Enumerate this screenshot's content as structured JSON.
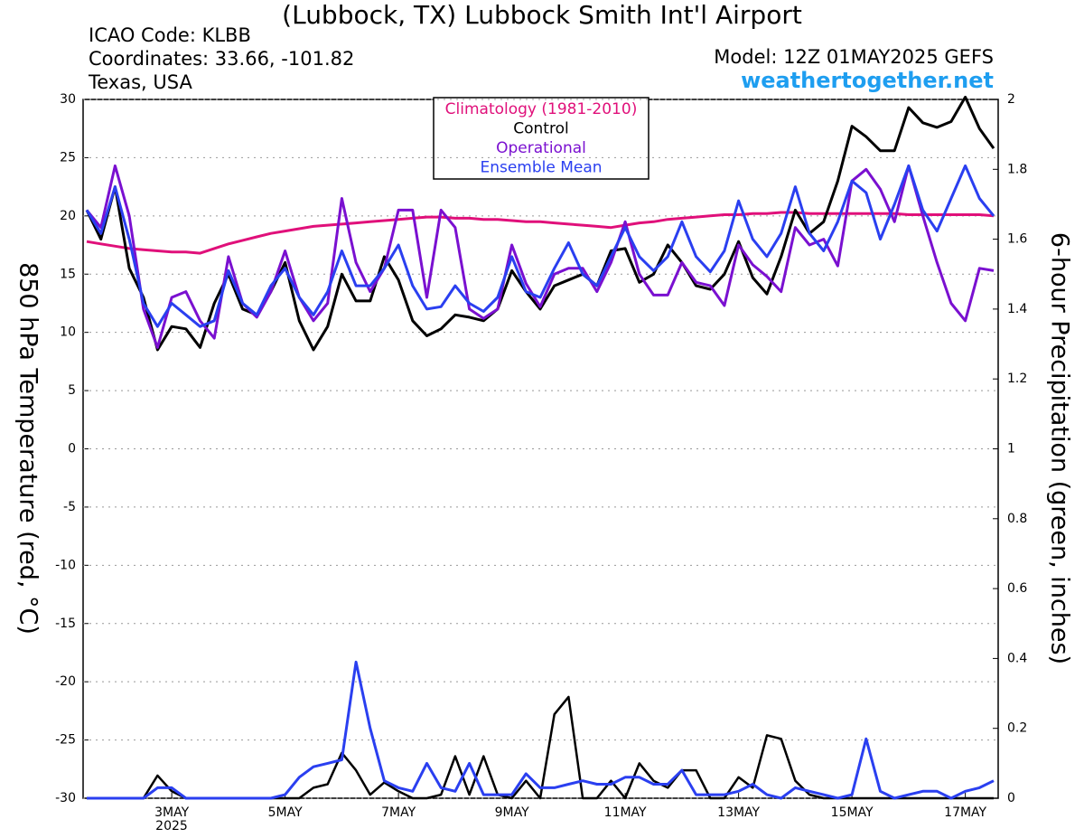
{
  "chart_data": {
    "type": "line",
    "title": "(Lubbock, TX) Lubbock Smith Int'l Airport",
    "info": [
      "ICAO Code: KLBB",
      "Coordinates: 33.66, -101.82",
      "Texas, USA"
    ],
    "model": "Model: 12Z 01MAY2025 GEFS",
    "website": "weathertogether.net",
    "year_label": "2025",
    "y_label": "850 hPa Temperature (red, °C)",
    "y2_label": "6-hour Precipitation (green, inches)",
    "grid": true,
    "legend_position": "top-center",
    "categories": [
      null,
      null,
      null,
      null,
      null,
      null,
      "3MAY",
      null,
      null,
      null,
      null,
      null,
      null,
      null,
      "5MAY",
      null,
      null,
      null,
      null,
      null,
      null,
      null,
      "7MAY",
      null,
      null,
      null,
      null,
      null,
      null,
      null,
      "9MAY",
      null,
      null,
      null,
      null,
      null,
      null,
      null,
      "11MAY",
      null,
      null,
      null,
      null,
      null,
      null,
      null,
      "13MAY",
      null,
      null,
      null,
      null,
      null,
      null,
      null,
      "15MAY",
      null,
      null,
      null,
      null,
      null,
      null,
      null,
      "17MAY",
      null,
      null
    ],
    "ylim": [
      -30,
      30
    ],
    "yticks": [
      30,
      25,
      20,
      15,
      10,
      5,
      0,
      -5,
      -10,
      -15,
      -20,
      -25,
      -30
    ],
    "y2lim": [
      0,
      2
    ],
    "y2ticks": [
      2,
      1.8,
      1.6,
      1.4,
      1.2,
      1,
      0.8,
      0.6,
      0.4,
      0.2,
      0
    ],
    "series": [
      {
        "name": "Climatology (1981-2010)",
        "color": "#e0107a",
        "width": 3,
        "values": [
          17.8,
          17.6,
          17.4,
          17.2,
          17.1,
          17.0,
          16.9,
          16.9,
          16.8,
          17.2,
          17.6,
          17.9,
          18.2,
          18.5,
          18.7,
          18.9,
          19.1,
          19.2,
          19.3,
          19.4,
          19.5,
          19.6,
          19.7,
          19.8,
          19.9,
          19.9,
          19.8,
          19.8,
          19.7,
          19.7,
          19.6,
          19.5,
          19.5,
          19.4,
          19.3,
          19.2,
          19.1,
          19.0,
          19.2,
          19.4,
          19.5,
          19.7,
          19.8,
          19.9,
          20.0,
          20.1,
          20.1,
          20.2,
          20.2,
          20.3,
          20.3,
          20.2,
          20.2,
          20.2,
          20.2,
          20.2,
          20.2,
          20.2,
          20.1,
          20.1,
          20.1,
          20.1,
          20.1,
          20.1,
          20.0
        ]
      },
      {
        "color": "#000000",
        "width": 2.5,
        "axis": "y2",
        "values": [
          0,
          0,
          0,
          0,
          0,
          0.065,
          0.02,
          0,
          0,
          0,
          0,
          0,
          0,
          0,
          0,
          0,
          0.03,
          0.04,
          0.13,
          0.08,
          0.01,
          0.045,
          0.02,
          0,
          0,
          0.01,
          0.12,
          0.01,
          0.12,
          0.01,
          0,
          0.05,
          0,
          0.24,
          0.29,
          0,
          0,
          0.05,
          0,
          0.1,
          0.05,
          0.03,
          0.08,
          0.08,
          0,
          0,
          0.06,
          0.03,
          0.18,
          0.17,
          0.05,
          0.01,
          0,
          0,
          0,
          0,
          0,
          0,
          0,
          0,
          0,
          0,
          0,
          0,
          0
        ]
      },
      {
        "color": "#2a3ff0",
        "width": 3,
        "axis": "y2",
        "values": [
          0,
          0,
          0,
          0,
          0,
          0.03,
          0.03,
          0,
          0,
          0,
          0,
          0,
          0,
          0,
          0.01,
          0.06,
          0.09,
          0.1,
          0.11,
          0.39,
          0.2,
          0.05,
          0.03,
          0.02,
          0.1,
          0.03,
          0.02,
          0.1,
          0.01,
          0.01,
          0.01,
          0.07,
          0.03,
          0.03,
          0.04,
          0.05,
          0.04,
          0.04,
          0.06,
          0.06,
          0.04,
          0.04,
          0.08,
          0.01,
          0.01,
          0.01,
          0.02,
          0.04,
          0.01,
          0,
          0.03,
          0.02,
          0.01,
          0,
          0.01,
          0.17,
          0.02,
          0,
          0.01,
          0.02,
          0.02,
          0,
          0.02,
          0.03,
          0.05
        ]
      },
      {
        "name": "Control",
        "color": "#000000",
        "width": 3,
        "values": [
          20.5,
          18,
          22.5,
          15.5,
          13,
          8.5,
          10.5,
          10.3,
          8.7,
          12.5,
          15,
          12,
          11.5,
          13.5,
          16,
          11,
          8.5,
          10.5,
          15,
          12.7,
          12.7,
          16.5,
          14.5,
          11,
          9.7,
          10.3,
          11.5,
          11.3,
          11,
          12,
          15.3,
          13.5,
          12,
          14,
          14.5,
          15,
          14,
          17,
          17.2,
          14.3,
          15,
          17.5,
          16,
          14,
          13.7,
          15,
          17.8,
          14.7,
          13.3,
          16.5,
          20.5,
          18.5,
          19.5,
          23,
          27.7,
          26.8,
          25.6,
          25.6,
          29.3,
          28,
          27.6,
          28.1,
          30.2,
          27.5,
          25.8
        ]
      },
      {
        "name": "Operational",
        "color": "#7a10d0",
        "width": 3,
        "values": [
          20.5,
          19,
          24.3,
          20,
          12,
          8.7,
          13,
          13.5,
          11,
          9.5,
          16.5,
          12.5,
          11.3,
          13.5,
          17,
          13,
          11,
          12.5,
          21.5,
          16,
          13.5,
          15.5,
          20.5,
          20.5,
          13,
          20.5,
          19,
          12,
          11.2,
          12,
          17.5,
          14.2,
          12.2,
          15,
          15.5,
          15.5,
          13.5,
          16,
          19.5,
          15,
          13.2,
          13.2,
          16,
          14.3,
          14,
          12.3,
          17.5,
          15.8,
          14.8,
          13.5,
          19,
          17.5,
          18,
          15.7,
          23,
          24,
          22.3,
          19.5,
          24.3,
          20,
          16,
          12.5,
          11,
          15.5,
          15.3
        ]
      },
      {
        "name": "Ensemble Mean",
        "color": "#2a3ff0",
        "width": 3,
        "values": [
          20.5,
          18.5,
          22.5,
          18,
          12.5,
          10.5,
          12.5,
          11.5,
          10.5,
          11,
          15.3,
          12.5,
          11.5,
          14,
          15.5,
          13,
          11.5,
          13.5,
          17,
          14,
          14,
          15.5,
          17.5,
          14,
          12,
          12.2,
          14,
          12.5,
          11.8,
          13,
          16.5,
          13.5,
          13,
          15.5,
          17.7,
          15,
          14,
          16.5,
          19,
          16.5,
          15.3,
          16.5,
          19.5,
          16.5,
          15.2,
          17,
          21.3,
          18,
          16.5,
          18.5,
          22.5,
          18.5,
          17,
          19.5,
          23,
          22,
          18,
          21,
          24.3,
          20.5,
          18.7,
          21.5,
          24.3,
          21.5,
          20
        ]
      }
    ]
  }
}
